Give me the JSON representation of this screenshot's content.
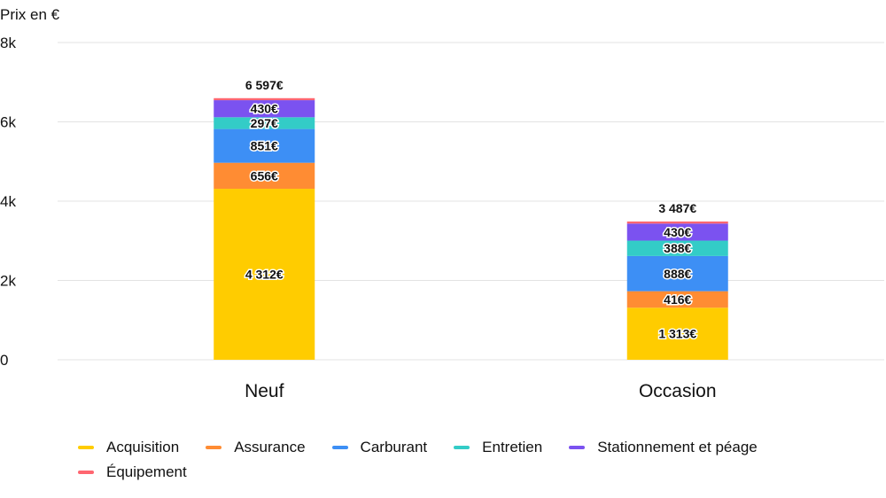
{
  "chart_data": {
    "type": "bar",
    "stacked": true,
    "ylabel": "Prix en €",
    "ylim": [
      0,
      8000
    ],
    "yticks": [
      0,
      2000,
      4000,
      6000,
      8000
    ],
    "ytick_labels": [
      "0",
      "2k",
      "4k",
      "6k",
      "8k"
    ],
    "grid": true,
    "legend_position": "bottom",
    "categories": [
      "Neuf",
      "Occasion"
    ],
    "totals": [
      6597,
      3487
    ],
    "total_labels": [
      "6 597€",
      "3 487€"
    ],
    "series": [
      {
        "name": "Acquisition",
        "color": "#ffcc00",
        "values": [
          4312,
          1313
        ],
        "labels": [
          "4 312€",
          "1 313€"
        ]
      },
      {
        "name": "Assurance",
        "color": "#ff8c33",
        "values": [
          656,
          416
        ],
        "labels": [
          "656€",
          "416€"
        ]
      },
      {
        "name": "Carburant",
        "color": "#3d8ff5",
        "values": [
          851,
          888
        ],
        "labels": [
          "851€",
          "888€"
        ]
      },
      {
        "name": "Entretien",
        "color": "#33ccc7",
        "values": [
          297,
          388
        ],
        "labels": [
          "297€",
          "388€"
        ]
      },
      {
        "name": "Stationnement et péage",
        "color": "#7b52f0",
        "values": [
          430,
          430
        ],
        "labels": [
          "430€",
          "430€"
        ]
      },
      {
        "name": "Équipement",
        "color": "#ff6670",
        "values": [
          51,
          52
        ],
        "labels": [
          "",
          ""
        ]
      }
    ]
  }
}
